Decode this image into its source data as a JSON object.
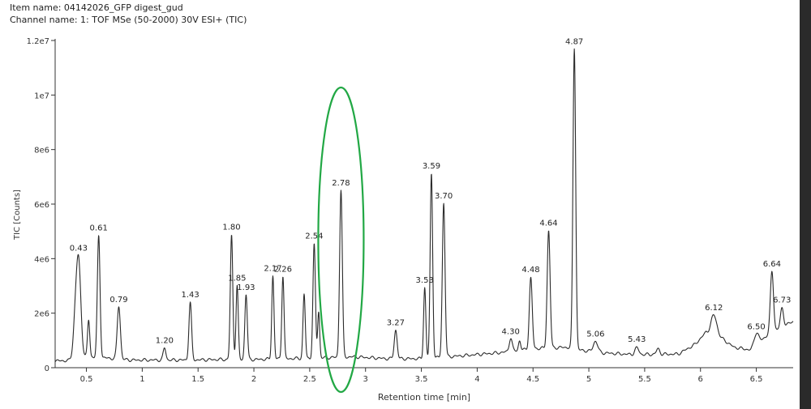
{
  "header": {
    "item_name": "Item name: 04142026_GFP digest_gud",
    "channel_name": "Channel name: 1: TOF MSe (50-2000) 30V ESI+ (TIC)"
  },
  "colors": {
    "trace": "#2b2b2b",
    "highlight_ellipse": "#22a845",
    "axis": "#333333",
    "background": "#ffffff"
  },
  "chart_data": {
    "type": "line",
    "xlabel": "Retention time [min]",
    "ylabel": "TIC [Counts]",
    "xlim": [
      0.22,
      6.83
    ],
    "ylim": [
      0,
      12000000
    ],
    "grid": false,
    "x_ticks": [
      {
        "v": 0.5,
        "label": "0.5"
      },
      {
        "v": 1,
        "label": "1"
      },
      {
        "v": 1.5,
        "label": "1.5"
      },
      {
        "v": 2,
        "label": "2"
      },
      {
        "v": 2.5,
        "label": "2.5"
      },
      {
        "v": 3,
        "label": "3"
      },
      {
        "v": 3.5,
        "label": "3.5"
      },
      {
        "v": 4,
        "label": "4"
      },
      {
        "v": 4.5,
        "label": "4.5"
      },
      {
        "v": 5,
        "label": "5"
      },
      {
        "v": 5.5,
        "label": "5.5"
      },
      {
        "v": 6,
        "label": "6"
      },
      {
        "v": 6.5,
        "label": "6.5"
      }
    ],
    "y_ticks": [
      {
        "v": 0,
        "label": "0"
      },
      {
        "v": 2000000,
        "label": "2e6"
      },
      {
        "v": 4000000,
        "label": "4e6"
      },
      {
        "v": 6000000,
        "label": "6e6"
      },
      {
        "v": 8000000,
        "label": "8e6"
      },
      {
        "v": 10000000,
        "label": "1e7"
      },
      {
        "v": 12000000,
        "label": "1.2e7"
      }
    ],
    "baseline": [
      [
        0.22,
        250000
      ],
      [
        0.34,
        260000
      ],
      [
        0.45,
        420000
      ],
      [
        0.7,
        350000
      ],
      [
        0.9,
        280000
      ],
      [
        1.4,
        280000
      ],
      [
        1.7,
        300000
      ],
      [
        2.0,
        300000
      ],
      [
        2.5,
        350000
      ],
      [
        2.9,
        400000
      ],
      [
        3.2,
        330000
      ],
      [
        3.5,
        330000
      ],
      [
        3.9,
        450000
      ],
      [
        4.2,
        550000
      ],
      [
        4.5,
        700000
      ],
      [
        4.8,
        750000
      ],
      [
        4.92,
        650000
      ],
      [
        5.1,
        550000
      ],
      [
        5.4,
        480000
      ],
      [
        5.8,
        500000
      ],
      [
        5.95,
        850000
      ],
      [
        6.05,
        1300000
      ],
      [
        6.15,
        1200000
      ],
      [
        6.3,
        750000
      ],
      [
        6.45,
        650000
      ],
      [
        6.6,
        1200000
      ],
      [
        6.83,
        1700000
      ]
    ],
    "peaks": [
      {
        "rt": 0.43,
        "height": 3400000,
        "width": 0.02,
        "label": "0.43"
      },
      {
        "rt": 0.4,
        "height": 1200000,
        "width": 0.018
      },
      {
        "rt": 0.52,
        "height": 1350000,
        "width": 0.01
      },
      {
        "rt": 0.61,
        "height": 4450000,
        "width": 0.012,
        "label": "0.61"
      },
      {
        "rt": 0.79,
        "height": 1950000,
        "width": 0.014,
        "label": "0.79"
      },
      {
        "rt": 1.2,
        "height": 450000,
        "width": 0.012,
        "label": "1.20"
      },
      {
        "rt": 1.43,
        "height": 2100000,
        "width": 0.012,
        "label": "1.43"
      },
      {
        "rt": 1.8,
        "height": 4550000,
        "width": 0.011,
        "label": "1.80"
      },
      {
        "rt": 1.85,
        "height": 2700000,
        "width": 0.01,
        "label": "1.85"
      },
      {
        "rt": 1.93,
        "height": 2400000,
        "width": 0.011,
        "label": "1.93"
      },
      {
        "rt": 2.17,
        "height": 3050000,
        "width": 0.01,
        "label": "2.17"
      },
      {
        "rt": 2.26,
        "height": 3050000,
        "width": 0.01,
        "label": "2.26"
      },
      {
        "rt": 2.45,
        "height": 2350000,
        "width": 0.01
      },
      {
        "rt": 2.54,
        "height": 4150000,
        "width": 0.011,
        "label": "2.54"
      },
      {
        "rt": 2.58,
        "height": 1700000,
        "width": 0.009
      },
      {
        "rt": 2.78,
        "height": 6150000,
        "width": 0.012,
        "label": "2.78"
      },
      {
        "rt": 3.27,
        "height": 1050000,
        "width": 0.013,
        "label": "3.27"
      },
      {
        "rt": 3.53,
        "height": 2600000,
        "width": 0.01,
        "label": "3.53"
      },
      {
        "rt": 3.59,
        "height": 6750000,
        "width": 0.011,
        "label": "3.59"
      },
      {
        "rt": 3.7,
        "height": 5650000,
        "width": 0.012,
        "label": "3.70"
      },
      {
        "rt": 4.3,
        "height": 500000,
        "width": 0.013,
        "label": "4.30"
      },
      {
        "rt": 4.38,
        "height": 350000,
        "width": 0.01
      },
      {
        "rt": 4.48,
        "height": 2600000,
        "width": 0.013,
        "label": "4.48"
      },
      {
        "rt": 4.64,
        "height": 4300000,
        "width": 0.013,
        "label": "4.64"
      },
      {
        "rt": 4.87,
        "height": 11050000,
        "width": 0.012,
        "label": "4.87"
      },
      {
        "rt": 5.06,
        "height": 400000,
        "width": 0.02,
        "label": "5.06"
      },
      {
        "rt": 5.43,
        "height": 250000,
        "width": 0.018,
        "label": "5.43"
      },
      {
        "rt": 5.62,
        "height": 200000,
        "width": 0.015
      },
      {
        "rt": 6.12,
        "height": 700000,
        "width": 0.025,
        "label": "6.12"
      },
      {
        "rt": 6.5,
        "height": 450000,
        "width": 0.02,
        "label": "6.50"
      },
      {
        "rt": 6.64,
        "height": 2250000,
        "width": 0.014,
        "label": "6.64"
      },
      {
        "rt": 6.73,
        "height": 700000,
        "width": 0.014,
        "label": "6.73"
      }
    ],
    "annotation": {
      "type": "ellipse",
      "center_rt": 2.78,
      "description": "highlighted peak"
    }
  }
}
